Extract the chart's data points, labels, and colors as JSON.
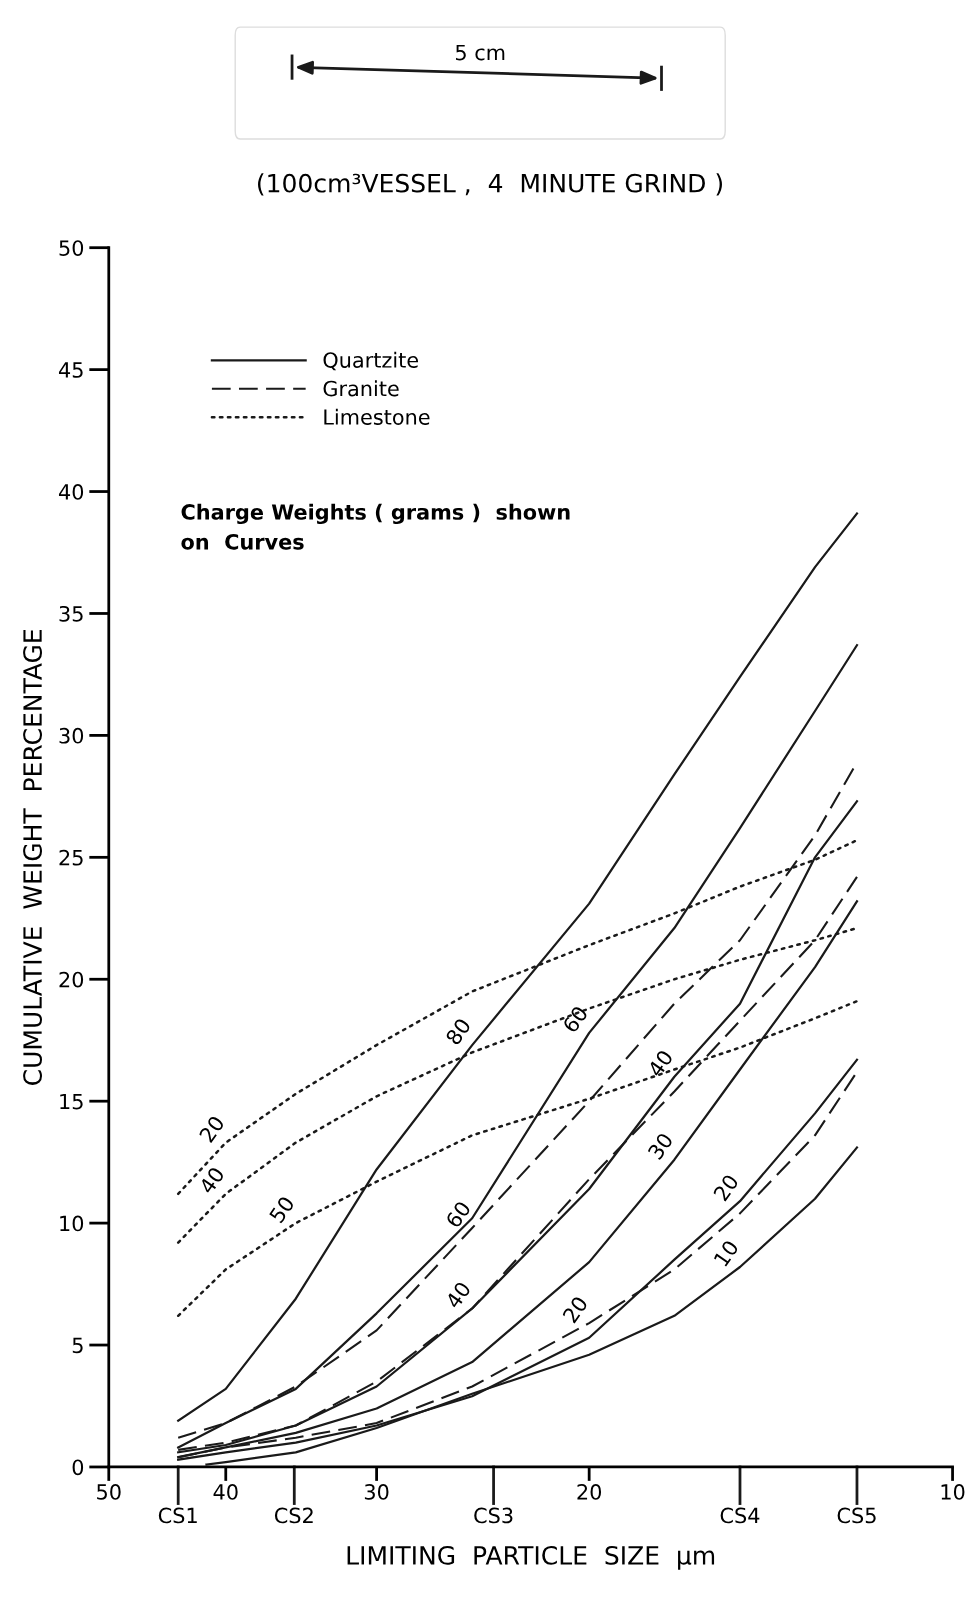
{
  "chart_data": {
    "type": "line",
    "title": "(100cm³VESSEL ,  4  MINUTE GRIND )",
    "xlabel": "LIMITING  PARTICLE  SIZE  µm",
    "ylabel": "CUMULATIVE  WEIGHT  PERCENTAGE",
    "log": "x",
    "xlim": [
      50,
      10
    ],
    "xticks": [
      50,
      40,
      30,
      20,
      10
    ],
    "ref_lines": [
      {
        "axis": "x",
        "value": 43.8,
        "label": "CS1"
      },
      {
        "axis": "x",
        "value": 35.1,
        "label": "CS2"
      },
      {
        "axis": "x",
        "value": 24.0,
        "label": "CS3"
      },
      {
        "axis": "x",
        "value": 15.0,
        "label": "CS4"
      },
      {
        "axis": "x",
        "value": 12.0,
        "label": "CS5"
      }
    ],
    "ylim": [
      0,
      50
    ],
    "yticks": [
      0,
      5,
      10,
      15,
      20,
      25,
      30,
      35,
      40,
      45,
      50
    ],
    "grid": false,
    "legend": "top left",
    "marker": "none",
    "annotations": [
      "5 cm",
      "Charge Weights ( grams )  shown\non  Curves",
      {
        "text": "80",
        "x": 25,
        "y": 17.3
      },
      {
        "text": "60",
        "x": 20,
        "y": 17.8
      },
      {
        "text": "60",
        "x": 25,
        "y": 9.8
      },
      {
        "text": "40",
        "x": 25,
        "y": 6.5
      },
      {
        "text": "20",
        "x": 20,
        "y": 5.9
      },
      {
        "text": "40",
        "x": 17,
        "y": 16.0
      },
      {
        "text": "30",
        "x": 17,
        "y": 12.6
      },
      {
        "text": "20",
        "x": 15,
        "y": 10.9
      },
      {
        "text": "10",
        "x": 15,
        "y": 8.2
      },
      {
        "text": "20",
        "x": 40,
        "y": 13.3
      },
      {
        "text": "40",
        "x": 40,
        "y": 11.2
      },
      {
        "text": "50",
        "x": 35,
        "y": 10.0
      }
    ],
    "x": [
      43.8,
      40,
      35,
      30,
      25,
      20,
      17,
      15,
      13,
      12
    ],
    "series": [
      {
        "name": "Quartzite",
        "color": "#1a1a1a",
        "line_style": "solid",
        "values": [
          1.9,
          3.2,
          6.9,
          12.2,
          17.3,
          23.1,
          28.4,
          32.4,
          36.9,
          39.1
        ]
      },
      {
        "color": "#1a1a1a",
        "line_style": "solid",
        "values": [
          0.8,
          1.8,
          3.2,
          6.3,
          10.2,
          17.8,
          22.1,
          26.2,
          31.0,
          33.7
        ]
      },
      {
        "color": "#1a1a1a",
        "line_style": "solid",
        "values": [
          0.6,
          0.9,
          1.7,
          3.3,
          6.5,
          11.4,
          16.0,
          19.0,
          25.0,
          27.3
        ]
      },
      {
        "color": "#1a1a1a",
        "line_style": "solid",
        "values": [
          0.4,
          0.8,
          1.4,
          2.4,
          4.3,
          8.4,
          12.6,
          16.3,
          20.5,
          23.2
        ]
      },
      {
        "color": "#1a1a1a",
        "line_style": "solid",
        "values": [
          0.3,
          0.6,
          1.0,
          1.7,
          2.9,
          5.3,
          8.5,
          10.9,
          14.5,
          16.7
        ]
      },
      {
        "color": "#1a1a1a",
        "line_style": "solid",
        "x": [
          41.5,
          40,
          35,
          30,
          25,
          20,
          17,
          15,
          13,
          12
        ],
        "values": [
          0.1,
          0.2,
          0.6,
          1.6,
          3.0,
          4.6,
          6.2,
          8.2,
          11.0,
          13.1
        ]
      },
      {
        "name": "Granite",
        "color": "#1a1a1a",
        "line_style": "dashed",
        "values": [
          1.2,
          1.8,
          3.3,
          5.6,
          9.8,
          15.0,
          19.0,
          21.6,
          25.9,
          28.9
        ]
      },
      {
        "color": "#1a1a1a",
        "line_style": "dashed",
        "values": [
          0.7,
          1.0,
          1.7,
          3.5,
          6.5,
          11.8,
          15.4,
          18.3,
          21.6,
          24.2
        ]
      },
      {
        "color": "#1a1a1a",
        "line_style": "dashed",
        "values": [
          0.4,
          0.8,
          1.2,
          1.8,
          3.3,
          5.9,
          8.1,
          10.4,
          13.6,
          16.2
        ]
      },
      {
        "name": "Limestone",
        "color": "#1a1a1a",
        "line_style": "dotted",
        "values": [
          11.2,
          13.3,
          15.3,
          17.3,
          19.5,
          21.4,
          22.7,
          23.8,
          24.9,
          25.7
        ]
      },
      {
        "color": "#1a1a1a",
        "line_style": "dotted",
        "values": [
          9.2,
          11.2,
          13.3,
          15.2,
          17.0,
          18.8,
          20.0,
          20.8,
          21.6,
          22.1
        ]
      },
      {
        "color": "#1a1a1a",
        "line_style": "dotted",
        "values": [
          6.2,
          8.1,
          10.0,
          11.7,
          13.6,
          15.1,
          16.3,
          17.2,
          18.4,
          19.1
        ]
      }
    ]
  }
}
